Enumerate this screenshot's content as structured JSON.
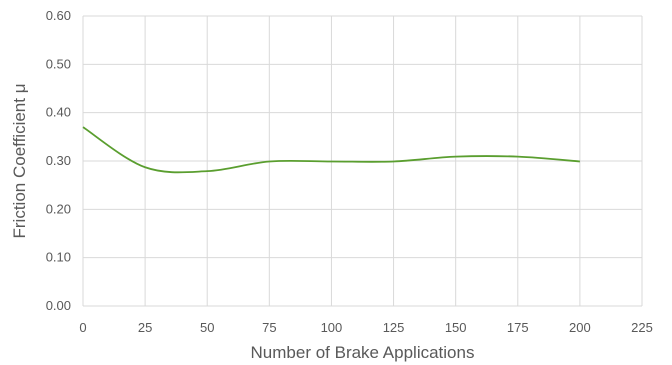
{
  "chart_data": {
    "type": "line",
    "xlabel": "Number of Brake Applications",
    "ylabel": "Friction Coefficient μ",
    "xlim": [
      0,
      225
    ],
    "ylim": [
      0,
      0.6
    ],
    "x_ticks": [
      "0",
      "25",
      "50",
      "75",
      "100",
      "125",
      "150",
      "175",
      "200",
      "225"
    ],
    "y_ticks": [
      "0.00",
      "0.10",
      "0.20",
      "0.30",
      "0.40",
      "0.50",
      "0.60"
    ],
    "grid": true,
    "legend": "none",
    "series": [
      {
        "color": "#5a9e2f",
        "smooth": true,
        "x": [
          0,
          25,
          50,
          75,
          100,
          125,
          150,
          175,
          200
        ],
        "y": [
          0.37,
          0.287,
          0.279,
          0.299,
          0.299,
          0.299,
          0.309,
          0.309,
          0.299
        ]
      }
    ]
  }
}
